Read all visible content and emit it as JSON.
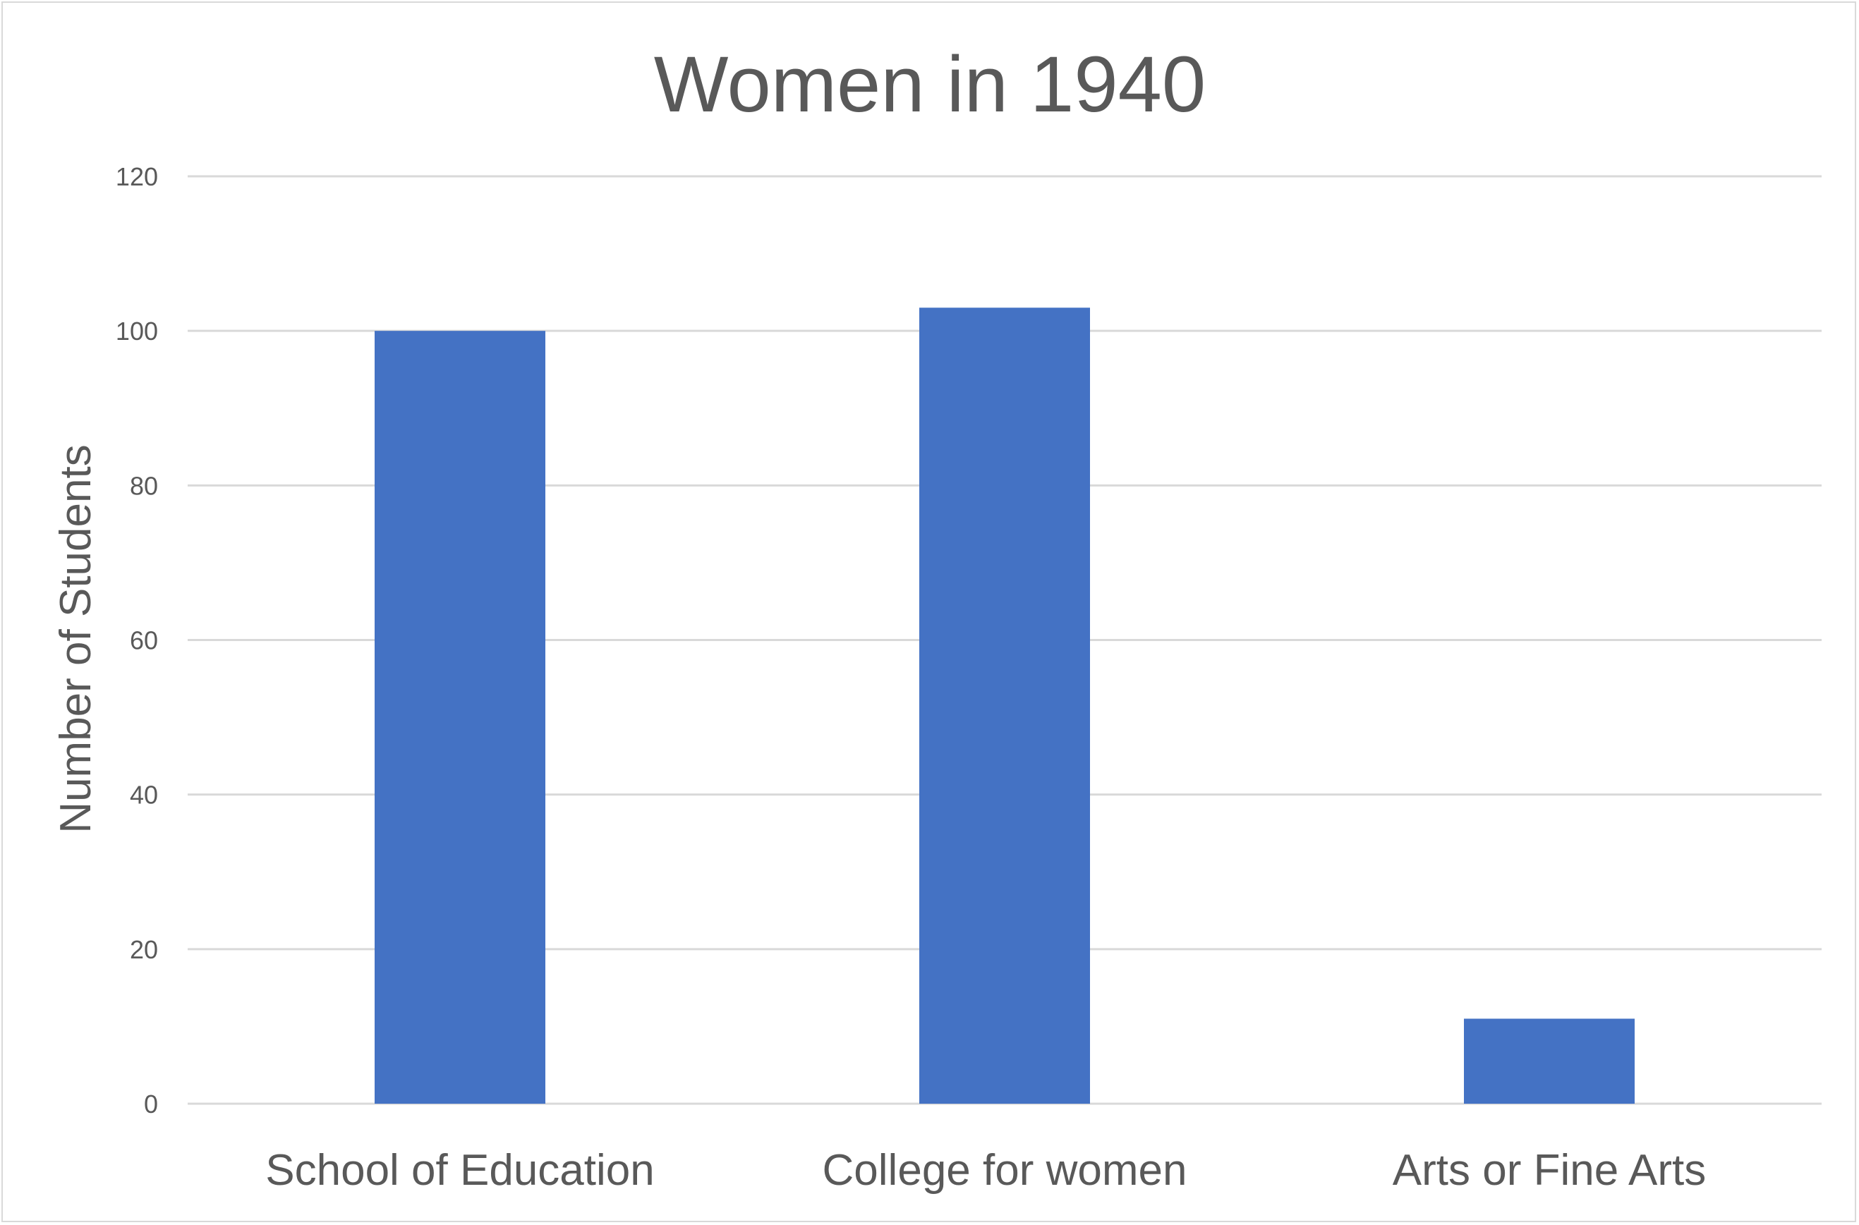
{
  "chart_data": {
    "type": "bar",
    "title": "Women in 1940",
    "xlabel": "",
    "ylabel": "Number of Students",
    "categories": [
      "School of Education",
      "College for women",
      "Arts or Fine Arts"
    ],
    "values": [
      100,
      103,
      11
    ],
    "ylim": [
      0,
      120
    ],
    "yticks": [
      0,
      20,
      40,
      60,
      80,
      100,
      120
    ],
    "grid": true,
    "legend": "none",
    "colors": {
      "bar": "#4472C4",
      "grid": "#d9d9d9",
      "text": "#595959",
      "frame": "#d9d9d9"
    }
  }
}
